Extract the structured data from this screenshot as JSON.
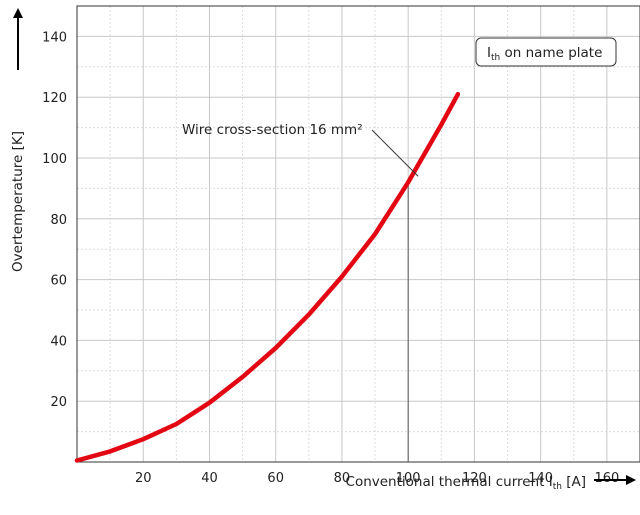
{
  "chart_data": {
    "type": "line",
    "title": "",
    "xlabel": {
      "pre": "Conventional thermal current I",
      "sub": "th",
      "post": " [A]"
    },
    "ylabel": "Overtemperature [K]",
    "xlim": [
      0,
      170
    ],
    "ylim": [
      0,
      150
    ],
    "xticks": [
      20,
      40,
      60,
      80,
      100,
      120,
      140,
      160
    ],
    "yticks": [
      20,
      40,
      60,
      80,
      100,
      120,
      140
    ],
    "minor_grid": true,
    "grid": true,
    "series": [
      {
        "color": "#e30613",
        "x": [
          0,
          10,
          20,
          30,
          40,
          50,
          60,
          70,
          80,
          90,
          100,
          110,
          115
        ],
        "y": [
          0.5,
          3.5,
          7.5,
          12.5,
          19.5,
          28,
          37.5,
          48.5,
          61,
          75,
          92,
          111,
          121
        ]
      }
    ],
    "reference_line": {
      "x": 100,
      "y": 92
    },
    "annotations": {
      "wire": {
        "text": "Wire cross-section 16 mm²",
        "x": 103,
        "y": 94
      },
      "legend_box": {
        "pre": "I",
        "sub": "th",
        "post": " on name plate"
      }
    }
  }
}
